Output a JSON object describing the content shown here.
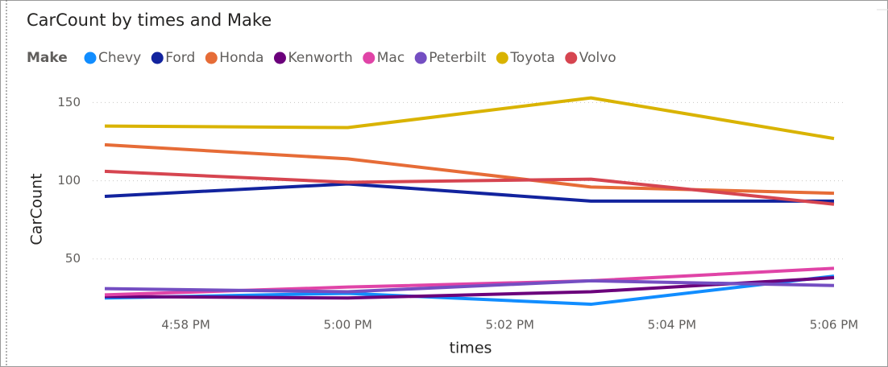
{
  "chart_data": {
    "type": "line",
    "title": "CarCount by times and Make",
    "legend_title": "Make",
    "legend_position": "top-left",
    "x_label": "times",
    "y_label": "CarCount",
    "x": [
      "4:57 PM",
      "5:00 PM",
      "5:03 PM",
      "5:06 PM"
    ],
    "xlim": [
      "4:57 PM",
      "5:06 PM"
    ],
    "xticks": [
      "4:58 PM",
      "5:00 PM",
      "5:02 PM",
      "5:04 PM",
      "5:06 PM"
    ],
    "ylim": [
      20,
      160
    ],
    "yticks": [
      50,
      100,
      150
    ],
    "grid": true,
    "series": [
      {
        "name": "Chevy",
        "color": "#118DFF",
        "values": [
          25,
          28,
          21,
          39
        ]
      },
      {
        "name": "Ford",
        "color": "#12239E",
        "values": [
          90,
          98,
          87,
          87
        ]
      },
      {
        "name": "Honda",
        "color": "#E66C37",
        "values": [
          123,
          114,
          96,
          92
        ]
      },
      {
        "name": "Kenworth",
        "color": "#6B007B",
        "values": [
          26,
          25,
          29,
          38
        ]
      },
      {
        "name": "Mac",
        "color": "#E044A7",
        "values": [
          27,
          32,
          36,
          44
        ]
      },
      {
        "name": "Peterbilt",
        "color": "#744EC2",
        "values": [
          31,
          29,
          36,
          33
        ]
      },
      {
        "name": "Toyota",
        "color": "#D9B300",
        "values": [
          135,
          134,
          153,
          127
        ]
      },
      {
        "name": "Volvo",
        "color": "#D64550",
        "values": [
          106,
          99,
          101,
          85
        ]
      }
    ]
  }
}
